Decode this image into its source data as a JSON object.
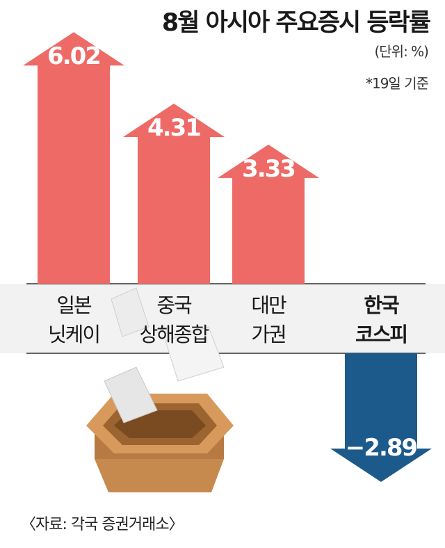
{
  "header": {
    "title": "8월 아시아 주요증시 등락률",
    "unit": "(단위: %)",
    "note": "*19일 기준"
  },
  "footer": {
    "source": "〈자료: 각국 증권거래소〉"
  },
  "colors": {
    "up": "#ee6a66",
    "down": "#1d5a8c",
    "band": "#f2f2f2",
    "box": "#c68a4e"
  },
  "chart_data": {
    "type": "bar",
    "title": "8월 아시아 주요증시 등락률",
    "unit": "%",
    "categories": [
      [
        "일본",
        "닛케이"
      ],
      [
        "중국",
        "상해종합"
      ],
      [
        "대만",
        "가권"
      ],
      [
        "한국",
        "코스피"
      ]
    ],
    "values": [
      6.02,
      4.31,
      3.33,
      -2.89
    ],
    "value_labels": [
      "6.02",
      "4.31",
      "3.33",
      "−2.89"
    ],
    "highlight_index": 3
  }
}
